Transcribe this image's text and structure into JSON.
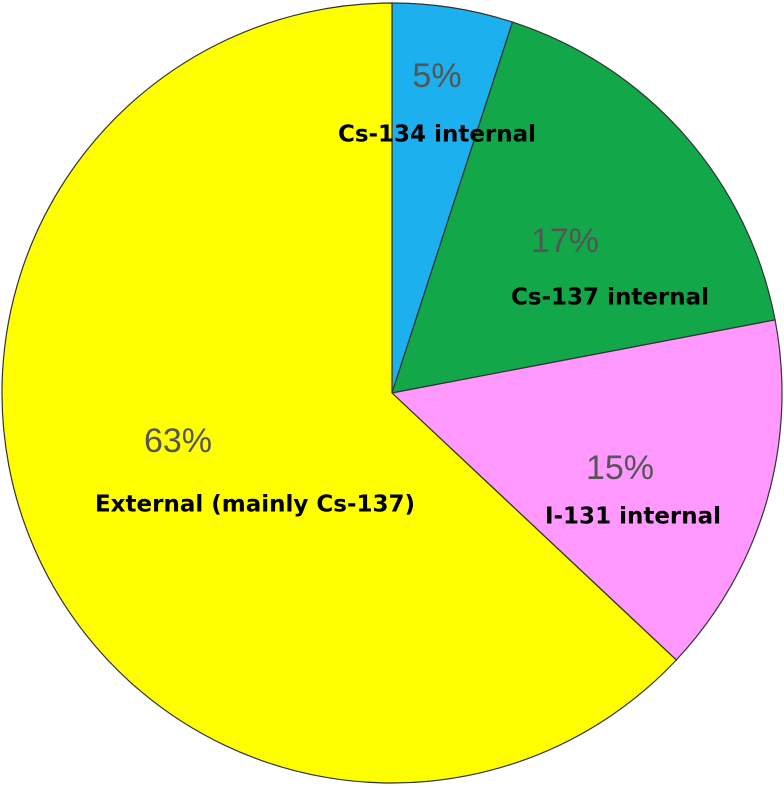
{
  "chart_data": {
    "type": "pie",
    "categories": [
      "Cs-134 internal",
      "Cs-137 internal",
      "I-131 internal",
      "External (mainly Cs-137)"
    ],
    "values": [
      5,
      17,
      15,
      63
    ],
    "value_labels": [
      "5%",
      "17%",
      "15%",
      "63%"
    ],
    "colors": [
      "#1cb0ee",
      "#12a84a",
      "#ff99ff",
      "#ffff00"
    ]
  }
}
